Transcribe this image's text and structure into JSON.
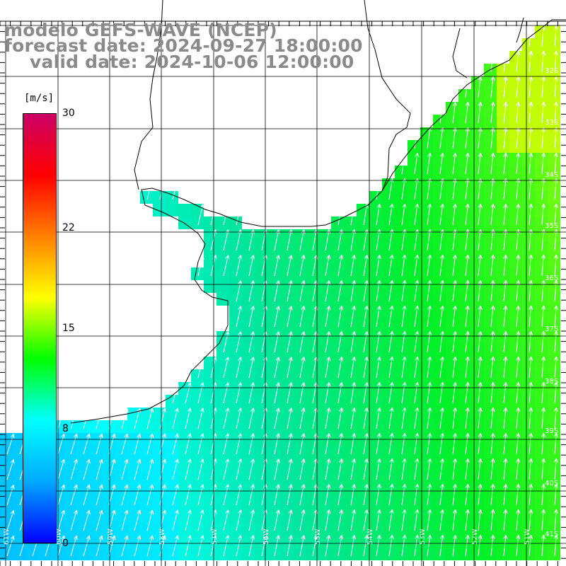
{
  "title": {
    "line1": "modelo GEFS-WAVE (NCEP)",
    "line2": "forecast date: 2024-09-27 18:00:00",
    "line3": "valid date: 2024-10-06 12:00:00"
  },
  "colorbar": {
    "unit": "[m/s]",
    "ticks": [
      {
        "label": "30",
        "value": 30
      },
      {
        "label": "22",
        "value": 22
      },
      {
        "label": "15",
        "value": 15
      },
      {
        "label": "8",
        "value": 8
      },
      {
        "label": "0",
        "value": 0
      }
    ],
    "min": 0,
    "max": 30,
    "gradient": [
      "#0000ff",
      "#00aaff",
      "#00ffff",
      "#00ff00",
      "#ffff00",
      "#ff8000",
      "#ff0000",
      "#cc0066"
    ]
  },
  "lat_labels": [
    "32S",
    "33S",
    "34S",
    "35S",
    "36S",
    "37S",
    "38S",
    "39S",
    "40S",
    "41S"
  ],
  "lon_labels": [
    "61W",
    "60W",
    "59W",
    "58W",
    "57W",
    "56W",
    "55W",
    "54W",
    "53W",
    "52W",
    "51W"
  ],
  "colors": {
    "land": "#ffffff",
    "coast": "#000000",
    "grid": "#000000",
    "arrow": "#ffffff",
    "title": "#8a8a8a"
  }
}
